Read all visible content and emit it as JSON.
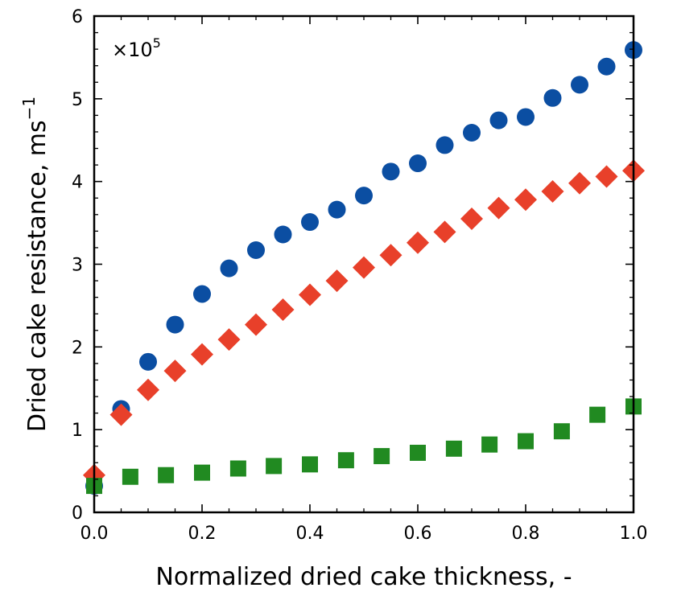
{
  "chart_data": {
    "type": "scatter",
    "xlabel": "Normalized dried cake thickness, -",
    "ylabel": "Dried cake resistance, ms",
    "ylabel_superscript": "−1",
    "y_multiplier": "×10",
    "y_multiplier_exponent": "5",
    "xlim": [
      0.0,
      1.0
    ],
    "ylim": [
      0,
      6
    ],
    "x_ticks": [
      "0.0",
      "0.2",
      "0.4",
      "0.6",
      "0.8",
      "1.0"
    ],
    "y_ticks": [
      "0",
      "1",
      "2",
      "3",
      "4",
      "5",
      "6"
    ],
    "grid": false,
    "legend": "none",
    "series": [
      {
        "marker": "circle",
        "color": "#0b4ea2",
        "x": [
          0.0,
          0.05,
          0.1,
          0.15,
          0.2,
          0.25,
          0.3,
          0.35,
          0.4,
          0.45,
          0.5,
          0.55,
          0.6,
          0.65,
          0.7,
          0.75,
          0.8,
          0.85,
          0.9,
          0.95,
          1.0
        ],
        "y": [
          0.32,
          1.25,
          1.82,
          2.27,
          2.64,
          2.95,
          3.17,
          3.36,
          3.51,
          3.66,
          3.83,
          4.12,
          4.22,
          4.44,
          4.59,
          4.74,
          4.78,
          5.01,
          5.17,
          5.39,
          5.59
        ]
      },
      {
        "marker": "diamond",
        "color": "#e8402a",
        "x": [
          0.0,
          0.05,
          0.1,
          0.15,
          0.2,
          0.25,
          0.3,
          0.35,
          0.4,
          0.45,
          0.5,
          0.55,
          0.6,
          0.65,
          0.7,
          0.75,
          0.8,
          0.85,
          0.9,
          0.95,
          1.0
        ],
        "y": [
          0.45,
          1.18,
          1.48,
          1.71,
          1.91,
          2.09,
          2.27,
          2.45,
          2.63,
          2.8,
          2.96,
          3.11,
          3.26,
          3.39,
          3.55,
          3.68,
          3.78,
          3.88,
          3.98,
          4.06,
          4.13
        ]
      },
      {
        "marker": "square",
        "color": "#218a21",
        "x": [
          0.0,
          0.067,
          0.133,
          0.2,
          0.267,
          0.333,
          0.4,
          0.467,
          0.533,
          0.6,
          0.667,
          0.733,
          0.8,
          0.867,
          0.933,
          1.0
        ],
        "y": [
          0.32,
          0.43,
          0.45,
          0.48,
          0.53,
          0.56,
          0.58,
          0.63,
          0.68,
          0.72,
          0.77,
          0.82,
          0.86,
          0.98,
          1.18,
          1.28
        ]
      }
    ]
  }
}
